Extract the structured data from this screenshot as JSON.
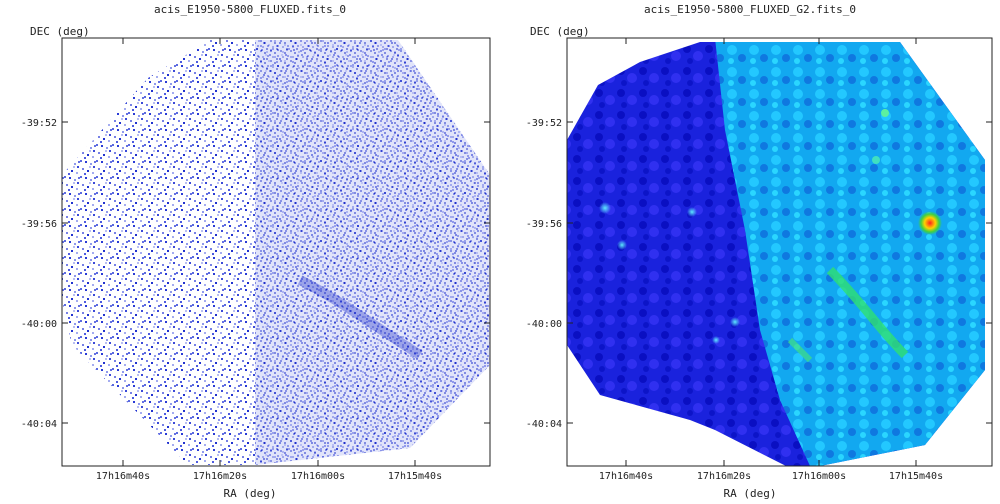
{
  "panels": [
    {
      "title": "acis_E1950-5800_FLUXED.fits_0",
      "ylabel": "DEC (deg)",
      "xlabel": "RA (deg)",
      "y_ticks": [
        "-39:52",
        "-39:56",
        "-40:00",
        "-40:04"
      ],
      "x_ticks": [
        "17h16m40s",
        "17h16m20s",
        "17h16m00s",
        "17h15m40s"
      ],
      "colormap": "white-blue"
    },
    {
      "title": "acis_E1950-5800_FLUXED_G2.fits_0",
      "ylabel": "DEC (deg)",
      "xlabel": "RA (deg)",
      "y_ticks": [
        "-39:52",
        "-39:56",
        "-40:00",
        "-40:04"
      ],
      "x_ticks": [
        "17h16m40s",
        "17h16m20s",
        "17h16m00s",
        "17h15m40s"
      ],
      "colormap": "blue-cyan-green-red"
    }
  ]
}
